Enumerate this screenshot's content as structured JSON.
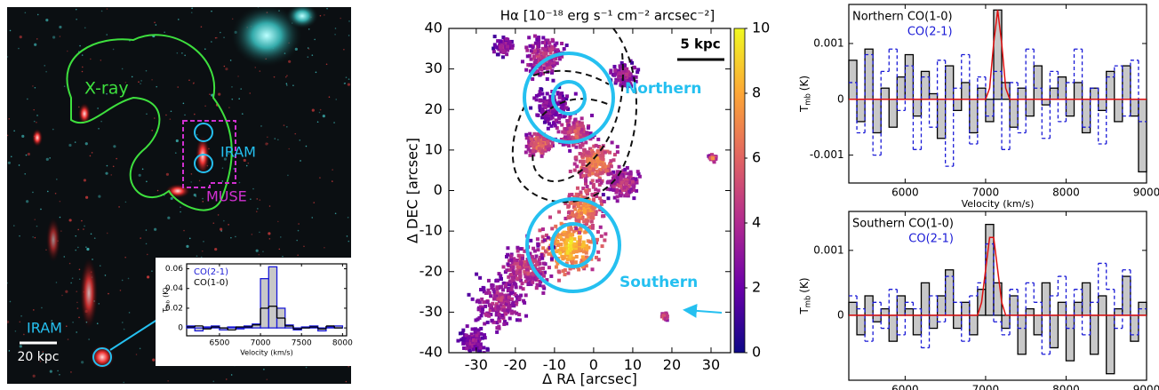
{
  "image_panel": {
    "labels": [
      "X-ray",
      "IRAM",
      "MUSE",
      "20 kpc",
      "IRAM"
    ]
  },
  "chart_data": [
    {
      "type": "spectrum",
      "xlabel": "Velocity (km/s)",
      "ylabel": {
        "symbol": "T",
        "subscript": "mb",
        "unit": "(K)"
      },
      "xlim": [
        6100,
        8050
      ],
      "ylim": [
        -0.008,
        0.065
      ],
      "xticks": [
        6500,
        7000,
        7500,
        8000
      ],
      "yticks": [
        0,
        0.02,
        0.04,
        0.06
      ],
      "x": [
        6150,
        6250,
        6350,
        6450,
        6550,
        6650,
        6750,
        6850,
        6950,
        7050,
        7150,
        7250,
        7350,
        7450,
        7550,
        7650,
        7750,
        7850,
        7950
      ],
      "series": [
        {
          "name": "CO(2-1)",
          "color": "#1a1ad6",
          "fill": "#c8c8c8",
          "style": "bars",
          "values": [
            0.002,
            -0.003,
            0.001,
            0.002,
            -0.002,
            0.001,
            -0.001,
            0.002,
            0.004,
            0.05,
            0.062,
            0.02,
            0.003,
            -0.002,
            0.001,
            0.002,
            -0.003,
            0.001,
            0.002
          ]
        },
        {
          "name": "CO(1-0)",
          "color": "#000000",
          "style": "steps",
          "values": [
            0.001,
            0.002,
            -0.001,
            0.001,
            0,
            -0.002,
            0.001,
            0.001,
            0.003,
            0.02,
            0.022,
            0.01,
            0.002,
            -0.001,
            0,
            0.001,
            -0.001,
            0.002,
            0
          ]
        }
      ]
    },
    {
      "type": "map",
      "title": "Hα [10⁻¹⁸ erg s⁻¹ cm⁻² arcsec⁻²]",
      "xlabel": "Δ RA [arcsec]",
      "ylabel": "Δ DEC [arcsec]",
      "xlim": [
        -37,
        35
      ],
      "ylim": [
        -40,
        40
      ],
      "xticks": [
        -30,
        -20,
        -10,
        0,
        10,
        20,
        30
      ],
      "yticks": [
        -40,
        -30,
        -20,
        -10,
        0,
        10,
        20,
        30,
        40
      ],
      "clim": [
        0,
        10
      ],
      "cticks": [
        0,
        2,
        4,
        6,
        8,
        10
      ],
      "annotations": [
        "Northern",
        "Southern",
        "5 kpc"
      ]
    },
    {
      "type": "spectrum",
      "xlabel": "Velocity (km/s)",
      "ylabel": {
        "symbol": "T",
        "subscript": "mb",
        "unit": "(K)"
      },
      "xlim": [
        5300,
        9000
      ],
      "ylim": [
        -0.0015,
        0.0017
      ],
      "xticks": [
        6000,
        7000,
        8000,
        9000
      ],
      "yticks": [
        -0.001,
        0,
        0.001
      ],
      "x": [
        5350,
        5450,
        5550,
        5650,
        5750,
        5850,
        5950,
        6050,
        6150,
        6250,
        6350,
        6450,
        6550,
        6650,
        6750,
        6850,
        6950,
        7050,
        7150,
        7250,
        7350,
        7450,
        7550,
        7650,
        7750,
        7850,
        7950,
        8050,
        8150,
        8250,
        8350,
        8450,
        8550,
        8650,
        8750,
        8850,
        8950
      ],
      "series": [
        {
          "name": "Northern CO(1-0)",
          "color": "#000000",
          "fill": "#c8c8c8",
          "style": "bars",
          "values": [
            0.0007,
            -0.0004,
            0.0009,
            -0.0006,
            0.0002,
            -0.0005,
            0.0004,
            0.0008,
            -0.0003,
            0.0005,
            0.0001,
            -0.0007,
            0.0006,
            -0.0002,
            0.0003,
            -0.0006,
            0.0002,
            -0.0004,
            0.0016,
            0.0003,
            -0.0005,
            0.0002,
            -0.0003,
            0.0006,
            -0.0001,
            0.0002,
            0.0004,
            -0.0003,
            0.0003,
            -0.0006,
            0.0002,
            -0.0002,
            0.0005,
            -0.0004,
            0.0006,
            -0.0003,
            -0.0013
          ]
        },
        {
          "name": "CO(2-1)",
          "color": "#1a1ad6",
          "style": "dashed-steps",
          "values": [
            0.0003,
            -0.0006,
            0.0008,
            -0.001,
            0.0005,
            0.0009,
            -0.0002,
            0.0006,
            -0.0009,
            0.0004,
            -0.0005,
            0.0007,
            -0.0012,
            0.0002,
            0.0008,
            -0.0008,
            0.0004,
            -0.0003,
            0.0005,
            -0.0009,
            0.0003,
            -0.0006,
            0.0009,
            0.0002,
            -0.0007,
            0.0005,
            -0.0004,
            0.0003,
            0.0009,
            -0.0005,
            0.0002,
            -0.0008,
            0.0004,
            0.0006,
            -0.0003,
            0.0007,
            -0.0004
          ]
        },
        {
          "color": "#e01010",
          "style": "line",
          "x": [
            5300,
            7000,
            7050,
            7100,
            7150,
            7200,
            7250,
            7300,
            9000
          ],
          "values": [
            0,
            0,
            0.0002,
            0.001,
            0.0016,
            0.001,
            0.0002,
            0,
            0
          ]
        }
      ]
    },
    {
      "type": "spectrum",
      "xlabel": "Velocity (km/s)",
      "ylabel": {
        "symbol": "T",
        "subscript": "mb",
        "unit": "(K)"
      },
      "xlim": [
        5300,
        9000
      ],
      "ylim": [
        -0.001,
        0.0016
      ],
      "xticks": [
        6000,
        7000,
        8000,
        9000
      ],
      "yticks": [
        0,
        0.001
      ],
      "x": [
        5350,
        5450,
        5550,
        5650,
        5750,
        5850,
        5950,
        6050,
        6150,
        6250,
        6350,
        6450,
        6550,
        6650,
        6750,
        6850,
        6950,
        7050,
        7150,
        7250,
        7350,
        7450,
        7550,
        7650,
        7750,
        7850,
        7950,
        8050,
        8150,
        8250,
        8350,
        8450,
        8550,
        8650,
        8750,
        8850,
        8950
      ],
      "series": [
        {
          "name": "Southern CO(1-0)",
          "color": "#000000",
          "fill": "#c8c8c8",
          "style": "bars",
          "values": [
            0.0002,
            -0.0003,
            0.0003,
            -0.0001,
            0.0001,
            -0.0004,
            0.0003,
            0.0001,
            -0.0003,
            0.0005,
            -0.0002,
            0.0003,
            0.0007,
            -0.0002,
            0.0002,
            -0.0003,
            0.0004,
            0.0014,
            0.0005,
            -0.0002,
            0.0003,
            -0.0006,
            0.0001,
            -0.0003,
            0.0005,
            -0.0005,
            0.0002,
            -0.0007,
            0.0002,
            0.0005,
            -0.0006,
            0.0003,
            -0.0009,
            0.0001,
            0.0006,
            -0.0004,
            0.0002
          ]
        },
        {
          "name": "CO(2-1)",
          "color": "#1a1ad6",
          "style": "dashed-steps",
          "values": [
            0.0003,
            0.0001,
            -0.0004,
            0.0002,
            -0.0002,
            0.0004,
            -0.0003,
            0.0002,
            0.0001,
            -0.0005,
            0.0003,
            -0.0001,
            0.0006,
            0.0002,
            -0.0004,
            0.0003,
            0.0005,
            0.0011,
            -0.0001,
            -0.0003,
            0.0004,
            -0.0002,
            0.0005,
            0.0002,
            -0.0006,
            0.0003,
            0.0006,
            -0.0002,
            0.0004,
            -0.0003,
            0.0002,
            0.0008,
            0.0004,
            -0.0002,
            0.0007,
            -0.0003,
            0.0001
          ]
        },
        {
          "color": "#e01010",
          "style": "line",
          "x": [
            5300,
            6900,
            6950,
            7000,
            7050,
            7100,
            7150,
            7200,
            7250,
            9000
          ],
          "values": [
            0,
            0,
            0.0002,
            0.0007,
            0.0012,
            0.0012,
            0.0007,
            0.0002,
            0,
            0
          ]
        }
      ]
    }
  ]
}
